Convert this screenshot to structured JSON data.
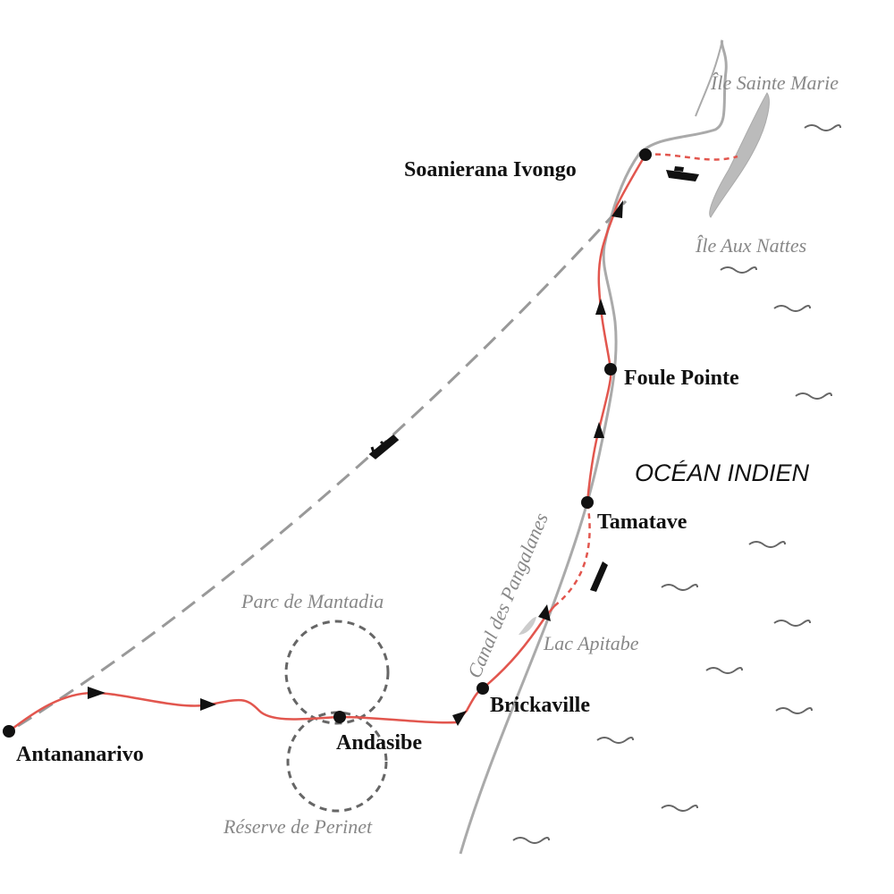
{
  "towns": [
    {
      "label": "Antananarivo"
    },
    {
      "label": "Andasibe"
    },
    {
      "label": "Brickaville"
    },
    {
      "label": "Tamatave"
    },
    {
      "label": "Foule Pointe"
    },
    {
      "label": "Soanierana Ivongo"
    }
  ],
  "places": [
    {
      "label": "Île Sainte Marie"
    },
    {
      "label": "Île Aux Nattes"
    },
    {
      "label": "Parc de Mantadia"
    },
    {
      "label": "Réserve de Perinet"
    },
    {
      "label": "Lac Apitabe"
    }
  ],
  "canal": "Canal des Pangalanes",
  "ocean": "OCÉAN INDIEN"
}
